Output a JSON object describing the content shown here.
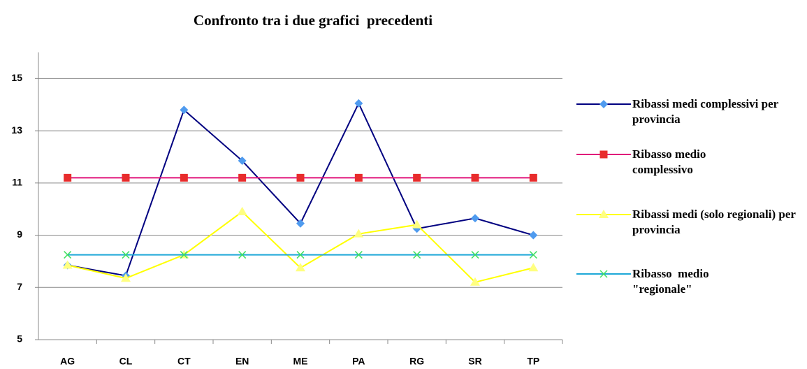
{
  "chart_data": {
    "type": "line",
    "title": "Confronto tra i due grafici  precedenti",
    "categories": [
      "AG",
      "CL",
      "CT",
      "EN",
      "ME",
      "PA",
      "RG",
      "SR",
      "TP"
    ],
    "series": [
      {
        "name": "Ribassi medi complessivi per provincia",
        "color": "#000080",
        "marker": "diamond",
        "marker_color": "#4f9bef",
        "values": [
          7.85,
          7.45,
          13.8,
          11.85,
          9.45,
          14.05,
          9.25,
          9.65,
          9.0
        ]
      },
      {
        "name": "Ribasso medio complessivo",
        "color": "#e0157a",
        "marker": "square",
        "marker_color": "#e82c2c",
        "values": [
          11.2,
          11.2,
          11.2,
          11.2,
          11.2,
          11.2,
          11.2,
          11.2,
          11.2
        ]
      },
      {
        "name": "Ribassi medi (solo regionali) per provincia",
        "color": "#ffff00",
        "marker": "triangle",
        "marker_color": "#ffff80",
        "values": [
          7.85,
          7.35,
          8.25,
          9.9,
          7.75,
          9.05,
          9.4,
          7.2,
          7.75
        ]
      },
      {
        "name": "Ribasso  medio \"regionale\"",
        "color": "#1ea8d8",
        "marker": "x",
        "marker_color": "#40e060",
        "values": [
          8.25,
          8.25,
          8.25,
          8.25,
          8.25,
          8.25,
          8.25,
          8.25,
          8.25
        ]
      }
    ],
    "ylim": [
      5,
      16
    ],
    "yticks": [
      5,
      7,
      9,
      11,
      13,
      15
    ],
    "grid": true,
    "legend": "right"
  }
}
